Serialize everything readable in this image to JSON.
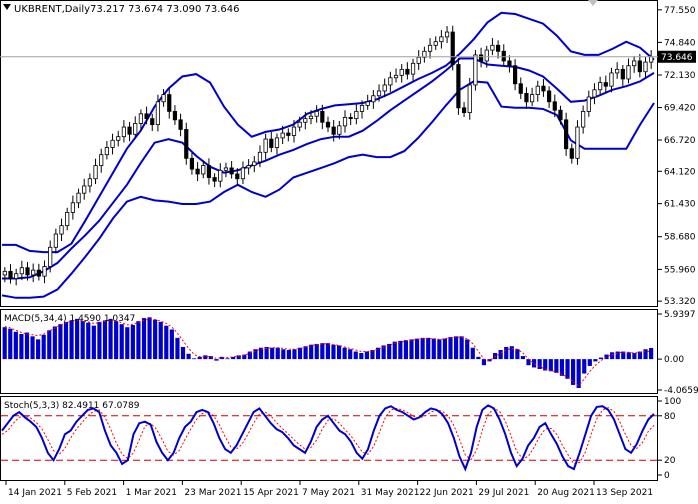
{
  "header": {
    "symbol_line": "UKBRENT,Daily",
    "ohlc_line": "73.217 73.674 73.090 73.646",
    "current_price": "73.646"
  },
  "price_axis_labels": [
    "77.550",
    "74.840",
    "72.130",
    "69.420",
    "66.720",
    "64.120",
    "61.430",
    "58.680",
    "55.960",
    "53.320"
  ],
  "macd_header": "MACD(5,34,4) 1.4590 1.0347",
  "macd_axis_labels": [
    "5.9397",
    "0.00",
    "-4.0659"
  ],
  "stoch_header": "Stoch(5,3,3) 82.4911 67.0789",
  "stoch_axis_labels": [
    "100",
    "80",
    "20",
    "0"
  ],
  "date_labels": [
    "14 Jan 2021",
    "5 Feb 2021",
    "1 Mar 2021",
    "23 Mar 2021",
    "15 Apr 2021",
    "7 May 2021",
    "31 May 2021",
    "22 Jun 2021",
    "29 Jul 2021",
    "20 Aug 2021",
    "13 Sep 2021"
  ],
  "colors": {
    "candle": "#000000",
    "bollinger": "#0000cd",
    "macd_hist": "#0000cd",
    "macd_signal": "#ff0000",
    "stoch_main": "#0000cd",
    "stoch_signal": "#ff0000",
    "level_lines": "#cc0000",
    "grid": "#c8c8c8"
  },
  "chart_data": [
    {
      "type": "candlestick",
      "title": "UKBRENT,Daily",
      "ylim": [
        53.0,
        78.2
      ],
      "grid": false,
      "close": [
        55.8,
        55.2,
        55.6,
        56.1,
        55.5,
        55.9,
        55.4,
        56.2,
        57.8,
        58.9,
        59.6,
        60.7,
        61.5,
        62.3,
        62.9,
        63.5,
        64.6,
        65.5,
        66.1,
        66.7,
        67.0,
        67.8,
        67.2,
        68.1,
        68.9,
        68.5,
        68.0,
        69.9,
        70.5,
        69.1,
        68.4,
        67.6,
        65.2,
        64.3,
        63.9,
        64.6,
        63.6,
        63.3,
        64.2,
        64.4,
        63.9,
        63.5,
        64.4,
        64.6,
        64.9,
        65.7,
        66.8,
        66.1,
        66.9,
        67.3,
        67.1,
        67.8,
        68.2,
        68.5,
        68.7,
        69.1,
        68.2,
        67.8,
        67.2,
        67.9,
        68.6,
        68.5,
        69.1,
        69.6,
        69.9,
        70.4,
        70.8,
        71.3,
        71.9,
        72.1,
        72.6,
        72.2,
        73.1,
        73.6,
        74.1,
        74.6,
        74.9,
        75.3,
        75.7,
        73.0,
        69.4,
        69.0,
        71.3,
        73.8,
        73.3,
        74.2,
        74.6,
        74.1,
        73.3,
        72.9,
        71.4,
        70.6,
        69.9,
        70.5,
        71.2,
        70.8,
        69.9,
        69.2,
        68.4,
        66.0,
        65.2,
        67.8,
        69.1,
        70.3,
        70.9,
        71.5,
        71.2,
        72.3,
        72.6,
        71.8,
        72.9,
        73.3,
        72.4,
        73.2,
        73.646
      ],
      "bollinger_upper": [
        58.0,
        58.0,
        57.5,
        57.4,
        57.4,
        58.1,
        60.0,
        62.0,
        64.0,
        66.0,
        67.5,
        69.5,
        71.0,
        72.0,
        72.2,
        71.5,
        69.5,
        68.0,
        67.0,
        67.4,
        67.6,
        68.0,
        68.9,
        69.3,
        69.6,
        69.7,
        69.8,
        70.1,
        70.6,
        71.2,
        71.8,
        72.3,
        72.9,
        73.9,
        75.1,
        76.5,
        77.3,
        77.2,
        76.8,
        76.4,
        75.4,
        74.1,
        73.8,
        73.8,
        74.3,
        74.9,
        74.4,
        73.4
      ],
      "bollinger_middle": [
        55.2,
        55.2,
        55.3,
        55.8,
        56.5,
        57.7,
        58.8,
        60.0,
        61.5,
        63.0,
        64.8,
        66.5,
        66.8,
        66.5,
        65.4,
        64.5,
        64.0,
        64.2,
        64.6,
        65.0,
        65.5,
        65.9,
        66.4,
        66.8,
        67.0,
        67.0,
        67.5,
        68.3,
        69.2,
        70.0,
        70.8,
        71.6,
        72.5,
        73.5,
        73.5,
        73.0,
        72.9,
        72.8,
        72.5,
        72.0,
        71.0,
        69.9,
        70.0,
        70.4,
        70.9,
        71.2,
        71.6,
        72.3
      ],
      "bollinger_lower": [
        53.8,
        53.6,
        53.6,
        53.7,
        54.3,
        55.6,
        57.0,
        58.5,
        60.2,
        61.6,
        62.0,
        61.7,
        61.6,
        61.4,
        61.4,
        61.6,
        62.4,
        63.0,
        62.4,
        62.0,
        62.6,
        63.6,
        64.0,
        64.4,
        64.8,
        65.3,
        65.5,
        65.3,
        65.3,
        65.8,
        66.9,
        68.2,
        69.6,
        70.9,
        71.6,
        71.5,
        69.5,
        69.4,
        69.4,
        69.3,
        68.8,
        66.7,
        66.0,
        66.0,
        66.0,
        66.0,
        68.0,
        69.8
      ]
    },
    {
      "type": "bar",
      "title": "MACD(5,34,4) 1.4590 1.0347",
      "ylim": [
        -4.0659,
        5.9397
      ],
      "macd_hist": [
        4.2,
        4.0,
        3.6,
        3.3,
        3.5,
        3.0,
        2.6,
        3.2,
        3.8,
        4.3,
        4.6,
        4.9,
        5.1,
        5.3,
        5.0,
        4.8,
        4.4,
        4.9,
        5.1,
        5.3,
        5.0,
        4.6,
        4.2,
        4.5,
        5.0,
        5.4,
        5.5,
        5.2,
        4.9,
        4.4,
        3.9,
        2.8,
        1.6,
        0.7,
        0.1,
        0.3,
        0.5,
        0.4,
        -0.2,
        0.3,
        0.1,
        0.3,
        0.5,
        0.6,
        1.0,
        1.3,
        1.5,
        1.6,
        1.5,
        1.5,
        1.3,
        1.2,
        1.3,
        1.5,
        1.7,
        1.9,
        2.0,
        2.1,
        2.1,
        1.9,
        1.8,
        1.5,
        1.3,
        1.0,
        0.8,
        1.0,
        1.2,
        1.5,
        1.8,
        2.0,
        2.3,
        2.4,
        2.5,
        2.6,
        2.7,
        2.8,
        2.8,
        2.7,
        2.6,
        2.7,
        2.9,
        3.0,
        3.0,
        2.6,
        1.5,
        0.3,
        -0.8,
        -0.3,
        0.8,
        1.2,
        1.6,
        1.7,
        1.3,
        0.4,
        -0.8,
        -1.1,
        -1.3,
        -1.5,
        -1.6,
        -1.8,
        -2.2,
        -2.6,
        -3.4,
        -3.8,
        -1.9,
        -0.9,
        -0.3,
        0.2,
        0.6,
        0.9,
        1.0,
        1.0,
        0.9,
        0.8,
        1.0,
        1.3,
        1.459
      ],
      "macd_signal": [
        4.3,
        4.1,
        3.8,
        3.5,
        3.3,
        3.2,
        3.1,
        3.3,
        3.7,
        4.1,
        4.5,
        4.8,
        5.0,
        5.1,
        5.0,
        4.9,
        4.7,
        4.8,
        5.0,
        5.1,
        5.0,
        4.8,
        4.5,
        4.6,
        4.8,
        5.1,
        5.3,
        5.2,
        5.0,
        4.7,
        4.2,
        3.4,
        2.4,
        1.4,
        0.6,
        0.3,
        0.3,
        0.3,
        0.1,
        0.2,
        0.2,
        0.3,
        0.4,
        0.5,
        0.8,
        1.1,
        1.3,
        1.4,
        1.5,
        1.5,
        1.4,
        1.3,
        1.3,
        1.4,
        1.6,
        1.8,
        1.9,
        2.0,
        2.0,
        1.9,
        1.8,
        1.6,
        1.4,
        1.2,
        1.0,
        1.0,
        1.1,
        1.3,
        1.6,
        1.8,
        2.1,
        2.2,
        2.4,
        2.5,
        2.6,
        2.7,
        2.7,
        2.7,
        2.6,
        2.7,
        2.8,
        2.9,
        2.9,
        2.7,
        2.0,
        1.0,
        0.0,
        -0.2,
        0.3,
        0.8,
        1.2,
        1.4,
        1.3,
        0.8,
        0.0,
        -0.6,
        -1.0,
        -1.3,
        -1.5,
        -1.7,
        -2.0,
        -2.4,
        -3.0,
        -3.5,
        -2.6,
        -1.6,
        -0.8,
        -0.2,
        0.3,
        0.6,
        0.8,
        0.9,
        0.9,
        0.8,
        0.9,
        1.0,
        1.0347
      ]
    },
    {
      "type": "line",
      "title": "Stoch(5,3,3) 82.4911 67.0789",
      "ylim": [
        0,
        100
      ],
      "levels": [
        20,
        80
      ],
      "stoch_main": [
        60,
        70,
        80,
        85,
        78,
        72,
        65,
        50,
        30,
        20,
        35,
        55,
        60,
        72,
        80,
        88,
        90,
        85,
        60,
        40,
        30,
        15,
        20,
        55,
        70,
        72,
        68,
        45,
        30,
        20,
        30,
        50,
        65,
        72,
        85,
        88,
        85,
        70,
        50,
        35,
        30,
        40,
        55,
        70,
        85,
        90,
        80,
        70,
        62,
        58,
        50,
        40,
        35,
        30,
        45,
        65,
        75,
        80,
        70,
        60,
        55,
        45,
        30,
        22,
        35,
        60,
        80,
        90,
        93,
        88,
        85,
        80,
        75,
        78,
        85,
        90,
        88,
        82,
        70,
        50,
        25,
        8,
        30,
        65,
        88,
        94,
        90,
        75,
        55,
        30,
        12,
        22,
        40,
        50,
        65,
        70,
        55,
        42,
        25,
        12,
        8,
        30,
        55,
        80,
        92,
        93,
        88,
        75,
        55,
        35,
        30,
        42,
        60,
        75,
        82.4911
      ],
      "stoch_signal": [
        55,
        60,
        70,
        78,
        80,
        77,
        71,
        62,
        48,
        33,
        28,
        36,
        50,
        62,
        71,
        80,
        86,
        88,
        78,
        62,
        43,
        28,
        22,
        30,
        48,
        66,
        70,
        62,
        48,
        32,
        27,
        33,
        48,
        62,
        75,
        83,
        86,
        80,
        68,
        52,
        38,
        35,
        42,
        55,
        70,
        82,
        85,
        80,
        71,
        63,
        56,
        48,
        41,
        35,
        37,
        47,
        62,
        74,
        76,
        70,
        61,
        53,
        42,
        31,
        28,
        39,
        58,
        77,
        88,
        90,
        88,
        84,
        79,
        77,
        80,
        85,
        88,
        86,
        80,
        67,
        48,
        27,
        21,
        34,
        61,
        82,
        90,
        86,
        73,
        53,
        32,
        22,
        25,
        37,
        52,
        62,
        63,
        55,
        40,
        27,
        15,
        17,
        31,
        55,
        76,
        88,
        91,
        86,
        72,
        55,
        40,
        36,
        44,
        59,
        67.0789
      ]
    }
  ]
}
